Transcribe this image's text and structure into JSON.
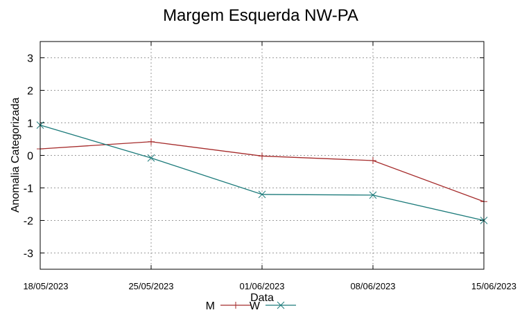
{
  "chart_data": {
    "type": "line",
    "title": "Margem Esquerda NW-PA",
    "xlabel": "Data",
    "ylabel": "Anomalia Categorizada",
    "categories": [
      "18/05/2023",
      "25/05/2023",
      "01/06/2023",
      "08/06/2023",
      "15/06/2023"
    ],
    "ylim": [
      -3.5,
      3.5
    ],
    "yticks": [
      "3",
      "2",
      "1",
      "0",
      "-1",
      "-2",
      "-3"
    ],
    "ytick_values": [
      3,
      2,
      1,
      0,
      -1,
      -2,
      -3
    ],
    "grid": true,
    "legend_position": "bottom-center",
    "series": [
      {
        "name": "M",
        "values": [
          0.2,
          0.42,
          -0.02,
          -0.16,
          -1.42
        ],
        "color": "#a52a2a",
        "marker": "plus"
      },
      {
        "name": "W",
        "values": [
          0.93,
          -0.08,
          -1.2,
          -1.22,
          -2.0
        ],
        "color": "#1b7a7a",
        "marker": "cross"
      }
    ]
  }
}
